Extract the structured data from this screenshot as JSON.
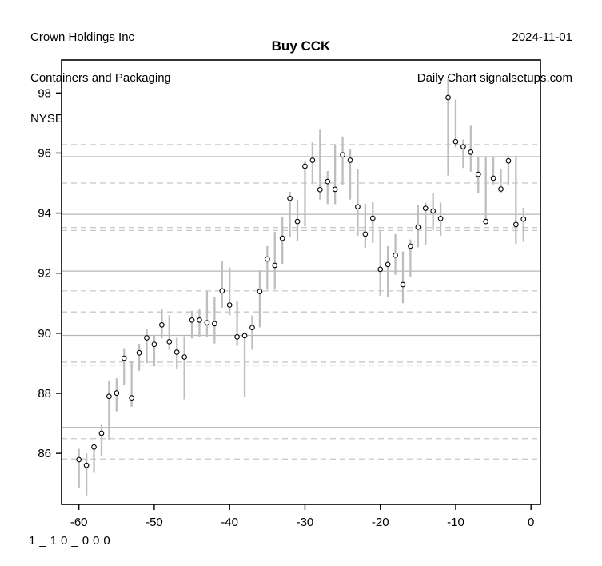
{
  "header": {
    "company": "Crown Holdings Inc",
    "industry": "Containers and Packaging",
    "exchange": "NYSE",
    "date": "2024-11-01",
    "source": "Daily Chart signalsetups.com"
  },
  "footer": {
    "code": "1_10_000"
  },
  "colors": {
    "bar": "#bebebe",
    "marker_stroke": "#000000",
    "marker_fill": "#ffffff",
    "grid_solid": "#b5b5b5",
    "grid_dashed": "#c8c8c8",
    "frame": "#000000",
    "text": "#000000",
    "background": "#ffffff"
  },
  "chart_data": {
    "type": "bar",
    "subtype": "high-low-close range bars, close marked with open circle",
    "title": "Buy CCK",
    "xlabel": "",
    "ylabel": "",
    "grid": "horizontal support/resistance levels only",
    "x_axis": {
      "ticks": [
        -60,
        -50,
        -40,
        -30,
        -20,
        -10,
        0
      ],
      "range": [
        -62.3,
        1.25
      ],
      "unit": "days before 2024-11-01"
    },
    "y_axis": {
      "ticks": [
        86,
        88,
        90,
        92,
        94,
        96,
        98
      ],
      "range": [
        84.3,
        99.1
      ],
      "unit": "price USD"
    },
    "levels_solid": [
      95.88,
      93.96,
      92.07,
      89.93,
      86.86
    ],
    "levels_dashed": [
      96.28,
      95.0,
      93.52,
      93.42,
      91.41,
      90.71,
      89.04,
      88.94,
      86.49,
      85.81
    ],
    "bars": {
      "columns": [
        "day",
        "high",
        "low",
        "close"
      ],
      "rows": [
        [
          -60,
          86.15,
          84.85,
          85.79
        ],
        [
          -59,
          86.0,
          84.6,
          85.6
        ],
        [
          -58,
          86.25,
          85.35,
          86.21
        ],
        [
          -57,
          86.95,
          85.9,
          86.67
        ],
        [
          -56,
          88.4,
          86.45,
          87.9
        ],
        [
          -55,
          88.5,
          87.4,
          88.01
        ],
        [
          -54,
          89.5,
          88.28,
          89.17
        ],
        [
          -53,
          89.08,
          87.55,
          87.85
        ],
        [
          -52,
          89.65,
          88.75,
          89.35
        ],
        [
          -51,
          90.15,
          89.0,
          89.85
        ],
        [
          -50,
          89.95,
          88.9,
          89.63
        ],
        [
          -49,
          90.8,
          89.83,
          90.28
        ],
        [
          -48,
          90.6,
          89.44,
          89.72
        ],
        [
          -47,
          89.85,
          88.82,
          89.37
        ],
        [
          -46,
          89.9,
          87.8,
          89.21
        ],
        [
          -45,
          90.75,
          89.83,
          90.44
        ],
        [
          -44,
          90.8,
          89.88,
          90.44
        ],
        [
          -43,
          91.4,
          89.89,
          90.35
        ],
        [
          -42,
          91.2,
          89.66,
          90.32
        ],
        [
          -41,
          92.4,
          90.85,
          91.41
        ],
        [
          -40,
          92.19,
          90.6,
          90.94
        ],
        [
          -39,
          91.08,
          89.58,
          89.88
        ],
        [
          -38,
          90.0,
          87.88,
          89.92
        ],
        [
          -37,
          90.59,
          89.45,
          90.19
        ],
        [
          -36,
          92.1,
          90.2,
          91.39
        ],
        [
          -35,
          92.9,
          91.45,
          92.47
        ],
        [
          -34,
          93.38,
          91.45,
          92.26
        ],
        [
          -33,
          93.86,
          92.31,
          93.16
        ],
        [
          -32,
          94.71,
          93.21,
          94.49
        ],
        [
          -31,
          94.45,
          93.06,
          93.72
        ],
        [
          -30,
          95.74,
          93.56,
          95.56
        ],
        [
          -29,
          96.36,
          94.98,
          95.76
        ],
        [
          -28,
          96.8,
          94.45,
          94.78
        ],
        [
          -27,
          95.4,
          94.3,
          95.05
        ],
        [
          -26,
          96.27,
          94.3,
          94.79
        ],
        [
          -25,
          96.55,
          94.95,
          95.94
        ],
        [
          -24,
          96.13,
          94.45,
          95.76
        ],
        [
          -23,
          95.47,
          93.25,
          94.21
        ],
        [
          -22,
          94.31,
          92.84,
          93.3
        ],
        [
          -21,
          94.36,
          93.01,
          93.83
        ],
        [
          -20,
          93.4,
          91.25,
          92.13
        ],
        [
          -19,
          92.9,
          91.2,
          92.29
        ],
        [
          -18,
          93.3,
          91.95,
          92.6
        ],
        [
          -17,
          92.72,
          91.0,
          91.62
        ],
        [
          -16,
          93.12,
          91.86,
          92.9
        ],
        [
          -15,
          94.26,
          92.86,
          93.53
        ],
        [
          -14,
          94.35,
          92.95,
          94.16
        ],
        [
          -13,
          94.68,
          93.43,
          94.07
        ],
        [
          -12,
          94.35,
          93.25,
          93.82
        ],
        [
          -11,
          98.5,
          95.25,
          97.85
        ],
        [
          -10,
          97.78,
          96.18,
          96.38
        ],
        [
          -9,
          96.45,
          95.5,
          96.21
        ],
        [
          -8,
          96.93,
          95.38,
          96.03
        ],
        [
          -7,
          95.85,
          94.67,
          95.29
        ],
        [
          -6,
          95.85,
          93.66,
          93.72
        ],
        [
          -5,
          95.85,
          94.96,
          95.16
        ],
        [
          -4,
          95.47,
          94.67,
          94.8
        ],
        [
          -3,
          95.91,
          94.94,
          95.74
        ],
        [
          -2,
          95.91,
          92.97,
          93.62
        ],
        [
          -1,
          94.18,
          93.04,
          93.8
        ]
      ]
    },
    "legend": "none"
  }
}
